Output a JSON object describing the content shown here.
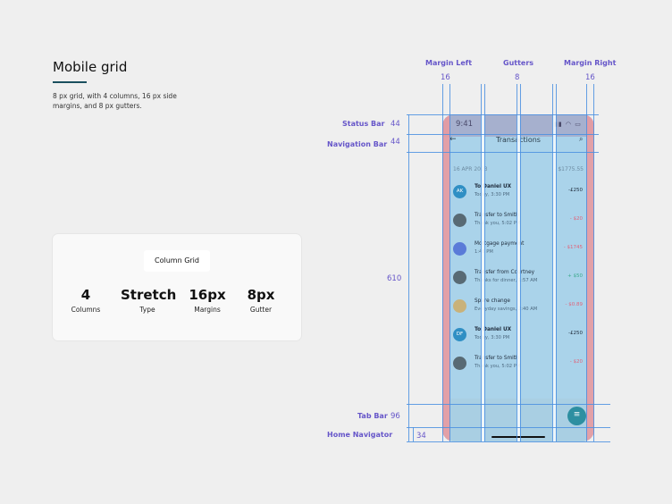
{
  "intro": {
    "title": "Mobile grid",
    "description": "8 px grid, with 4 columns, 16 px side margins, and 8 px gutters."
  },
  "card": {
    "label": "Column Grid",
    "stats": [
      {
        "value": "4",
        "label": "Columns"
      },
      {
        "value": "Stretch",
        "label": "Type"
      },
      {
        "value": "16px",
        "label": "Margins"
      },
      {
        "value": "8px",
        "label": "Gutter"
      }
    ]
  },
  "annotations": {
    "margin_left": {
      "label": "Margin Left",
      "value": "16"
    },
    "gutters": {
      "label": "Gutters",
      "value": "8"
    },
    "margin_right": {
      "label": "Margin Right",
      "value": "16"
    },
    "status_bar": {
      "label": "Status Bar",
      "value": "44"
    },
    "navigation_bar": {
      "label": "Navigation Bar",
      "value": "44"
    },
    "content_height": {
      "value": "610"
    },
    "tab_bar": {
      "label": "Tab Bar",
      "value": "96"
    },
    "home_navigator": {
      "label": "Home Navigator",
      "value": "34"
    }
  },
  "phone": {
    "time": "9:41",
    "nav_title": "Transactions",
    "date": "16 APR 2023",
    "date_total": "- $1775.55",
    "transactions": [
      {
        "avatar": "AK",
        "avatar_color": "#2f8fc4",
        "title": "To Daniel UX",
        "subtitle": "Today, 3:30 PM",
        "amount": "-£250",
        "amount_color": "#1d2a3a",
        "bold": true
      },
      {
        "avatar": "",
        "avatar_color": "#586a74",
        "title": "Transfer to Smith",
        "subtitle": "Thank you, 5:02 PM",
        "amount": "- $20",
        "amount_color": "#e0637a",
        "bold": false
      },
      {
        "avatar": "",
        "avatar_color": "#5a7bd8",
        "title": "Mortgage payment",
        "subtitle": "1:46 PM",
        "amount": "- $1745",
        "amount_color": "#e0637a",
        "bold": false
      },
      {
        "avatar": "",
        "avatar_color": "#586a74",
        "title": "Transfer from Courtney",
        "subtitle": "Thanks for dinner, 1:57 AM",
        "amount": "+ $50",
        "amount_color": "#3aa98c",
        "bold": false
      },
      {
        "avatar": "",
        "avatar_color": "#c9b27a",
        "title": "Spare change",
        "subtitle": "Everyday savings, 2:40 AM",
        "amount": "- $0.89",
        "amount_color": "#e0637a",
        "bold": false
      },
      {
        "avatar": "DF",
        "avatar_color": "#2f8fc4",
        "title": "To Daniel UX",
        "subtitle": "Today, 3:30 PM",
        "amount": "-£250",
        "amount_color": "#1d2a3a",
        "bold": true
      },
      {
        "avatar": "",
        "avatar_color": "#586a74",
        "title": "Transfer to Smith",
        "subtitle": "Thank you, 5:02 PM",
        "amount": "- $20",
        "amount_color": "#e0637a",
        "bold": false
      }
    ]
  },
  "colors": {
    "accent": "#6656c9",
    "guide": "#4a8fe0",
    "margin": "#e89aa0",
    "column": "#aad3ea"
  }
}
